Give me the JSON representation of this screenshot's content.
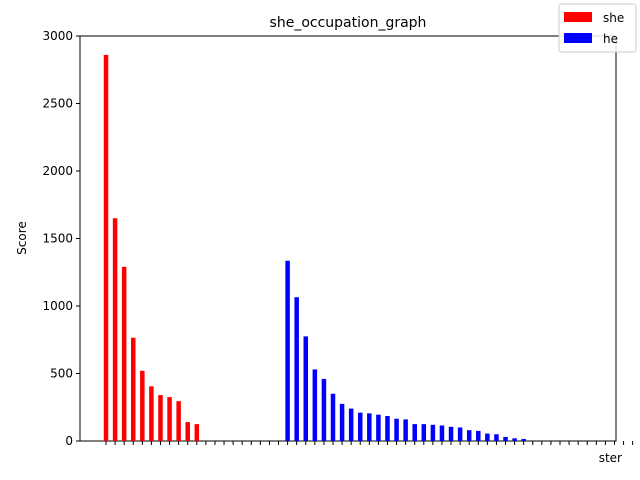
{
  "chart_data": {
    "type": "bar",
    "title": "she_occupation_graph",
    "xlabel": "",
    "ylabel": "Score",
    "ylim": [
      0,
      3000
    ],
    "yticks": [
      0,
      500,
      1000,
      1500,
      2000,
      2500,
      3000
    ],
    "legend": {
      "placement": "top-right"
    },
    "last_category_fragment": "ster",
    "series": [
      {
        "name": "she",
        "color": "#ff0000",
        "values": [
          2860,
          1650,
          1290,
          765,
          520,
          405,
          340,
          325,
          295,
          140,
          125,
          0,
          0,
          0,
          0,
          0,
          0,
          0,
          0,
          0
        ]
      },
      {
        "name": "he",
        "color": "#0000ff",
        "values": [
          1335,
          1065,
          775,
          530,
          460,
          350,
          275,
          240,
          210,
          205,
          195,
          185,
          165,
          160,
          125,
          125,
          120,
          115,
          105,
          100,
          80,
          75,
          55,
          50,
          30,
          20,
          15,
          0,
          0,
          0,
          0,
          0,
          0,
          0,
          0,
          0,
          0,
          0,
          0
        ]
      }
    ]
  }
}
